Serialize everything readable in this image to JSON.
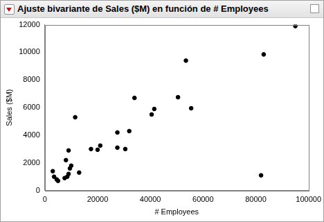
{
  "chart_data": {
    "type": "scatter",
    "title": "Ajuste bivariante de Sales ($M) en función de # Employees",
    "x_label": "# Employees",
    "y_label": "Sales ($M)",
    "x": [
      3000,
      3500,
      4500,
      5000,
      7500,
      8000,
      8500,
      9000,
      9000,
      9500,
      10000,
      11500,
      13000,
      17500,
      20000,
      21000,
      27500,
      27500,
      30500,
      32000,
      34000,
      40500,
      41500,
      50500,
      53500,
      55500,
      82000,
      83000,
      95000
    ],
    "values": [
      1400,
      1000,
      800,
      700,
      900,
      2200,
      1000,
      1200,
      2900,
      1600,
      1800,
      5300,
      1300,
      3000,
      2950,
      3250,
      4200,
      3100,
      3000,
      4300,
      6700,
      5500,
      5900,
      6750,
      9400,
      5950,
      1100,
      9850,
      11900
    ],
    "color": "#000000",
    "marker": "circle",
    "xlim": [
      0,
      100000
    ],
    "xticks": [
      0,
      20000,
      40000,
      60000,
      80000,
      100000
    ],
    "ylim": [
      0,
      12000
    ],
    "yticks": [
      0,
      2000,
      4000,
      6000,
      8000,
      10000,
      12000
    ],
    "grid": false
  }
}
